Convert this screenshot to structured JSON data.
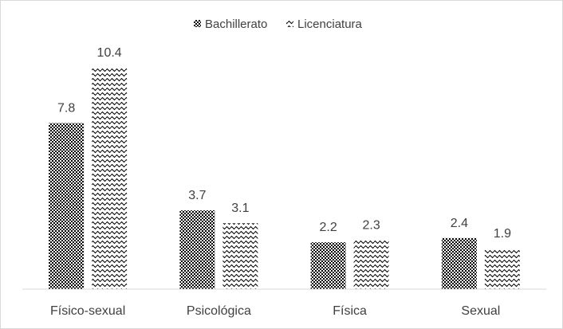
{
  "chart_data": {
    "type": "bar",
    "title": "",
    "xlabel": "",
    "ylabel": "",
    "categories": [
      "Físico-sexual",
      "Psicológica",
      "Física",
      "Sexual"
    ],
    "series": [
      {
        "name": "Bachillerato",
        "values": [
          7.8,
          3.7,
          2.2,
          2.4
        ],
        "pattern": "checker",
        "color": "#000000"
      },
      {
        "name": "Licenciatura",
        "values": [
          10.4,
          3.1,
          2.3,
          1.9
        ],
        "pattern": "wave",
        "color": "#000000"
      }
    ],
    "ylim": [
      0,
      11
    ],
    "grid": false,
    "legend": "top-center",
    "data_labels": true
  }
}
